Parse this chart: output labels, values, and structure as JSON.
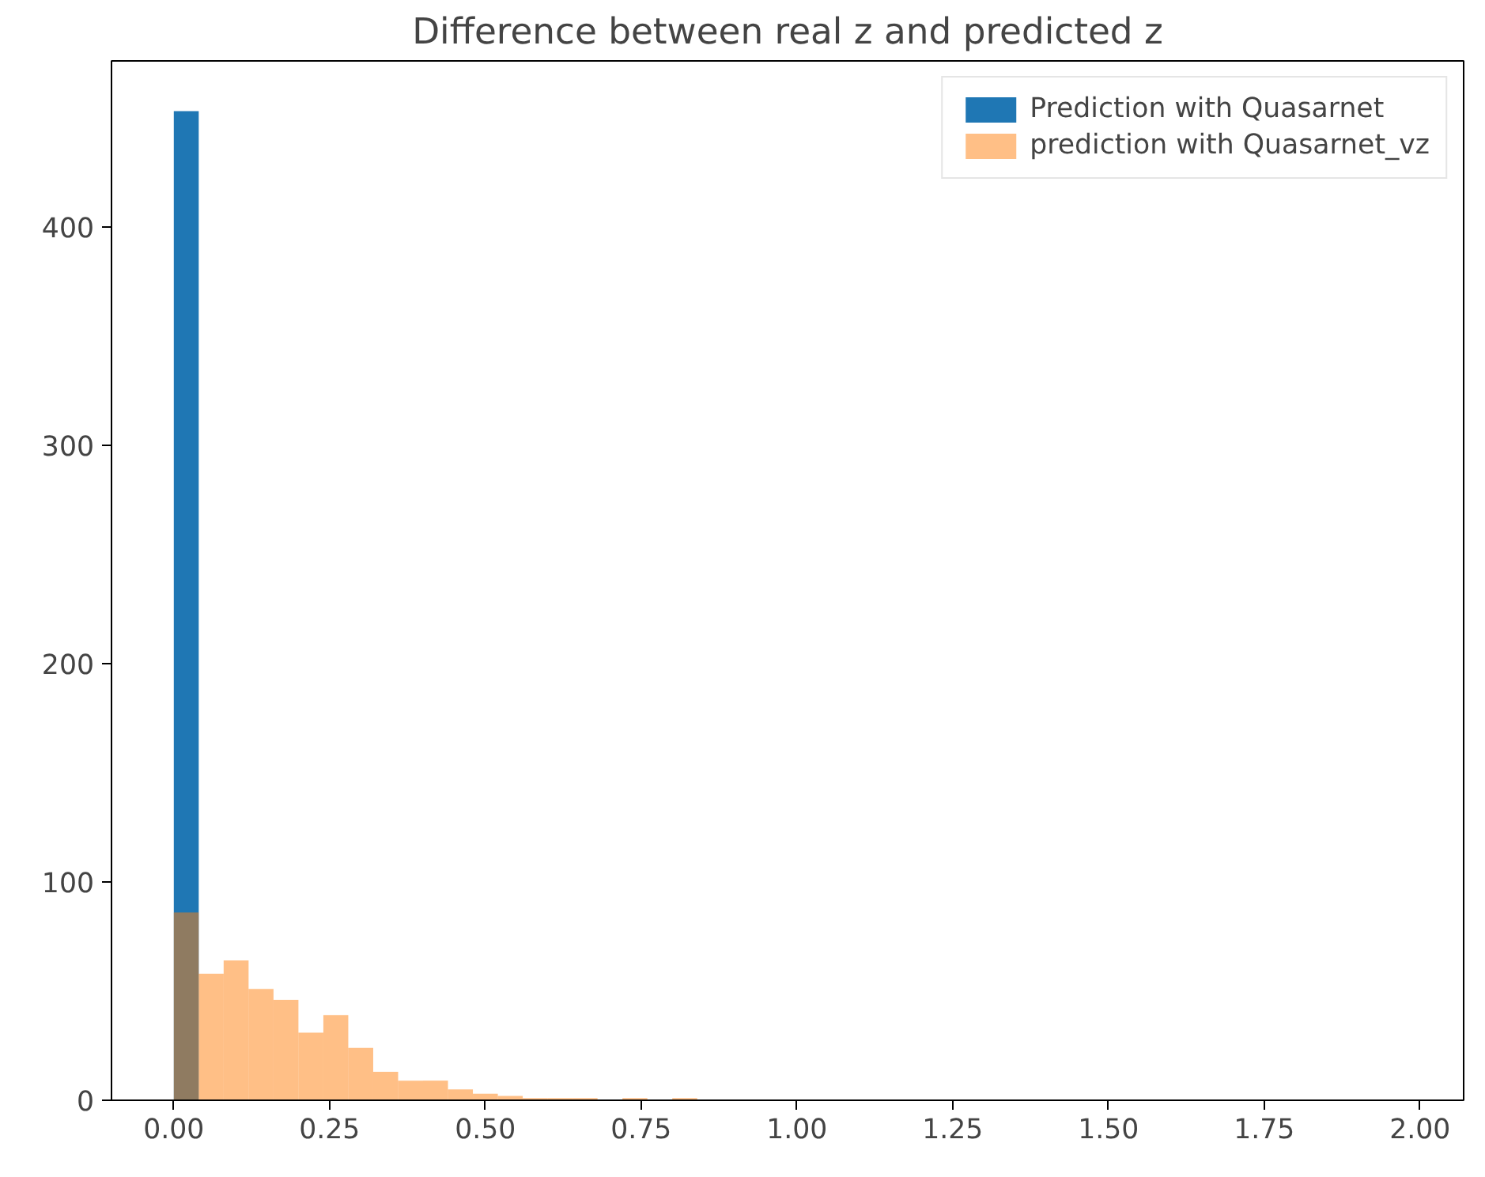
{
  "chart_data": {
    "type": "histogram",
    "title": "Difference between real z and predicted z",
    "bins": [
      0,
      0.04,
      0.08,
      0.12,
      0.16,
      0.2,
      0.24,
      0.28,
      0.32,
      0.36,
      0.4,
      0.44,
      0.48,
      0.52,
      0.56,
      0.6,
      0.64,
      0.68,
      0.72,
      0.76,
      0.8,
      0.84,
      0.88,
      0.92,
      0.96,
      1.0,
      1.04,
      1.08,
      1.12,
      1.16,
      1.2,
      1.24,
      1.28,
      1.32,
      1.36,
      1.4,
      1.44,
      1.48,
      1.52,
      1.56,
      1.6,
      1.64,
      1.68,
      1.72,
      1.76,
      1.8,
      1.84,
      1.88,
      1.92,
      1.96,
      2.0
    ],
    "series": [
      {
        "name": "Prediction with Quasarnet",
        "color": "#1f77b4",
        "values": [
          453,
          0,
          0,
          0,
          0,
          0,
          0,
          0,
          0,
          0,
          0,
          0,
          0,
          0,
          0,
          0,
          0,
          0,
          0,
          0,
          0,
          0,
          0,
          0,
          0,
          0,
          0,
          0,
          0,
          0,
          0,
          0,
          0,
          0,
          0,
          0,
          0,
          0,
          0,
          0,
          0,
          0,
          0,
          0,
          0,
          0,
          0,
          0,
          0,
          0
        ]
      },
      {
        "name": "prediction with Quasarnet_vz",
        "color": "#ff7f0e",
        "values": [
          86,
          58,
          64,
          51,
          46,
          31,
          39,
          24,
          13,
          9,
          9,
          5,
          3,
          2,
          1,
          1,
          1,
          0,
          1,
          0,
          1,
          0,
          0,
          0,
          0,
          0,
          0,
          0,
          0,
          0,
          0,
          0,
          0,
          0,
          0,
          0,
          0,
          0,
          0,
          0,
          0,
          0,
          0,
          0,
          0,
          0,
          0,
          0,
          0,
          0
        ]
      }
    ],
    "xlim": [
      -0.1,
      2.07
    ],
    "ylim": [
      0,
      476
    ],
    "xticks": [
      {
        "value": 0,
        "label": "0.00"
      },
      {
        "value": 0.25,
        "label": "0.25"
      },
      {
        "value": 0.5,
        "label": "0.50"
      },
      {
        "value": 0.75,
        "label": "0.75"
      },
      {
        "value": 1.0,
        "label": "1.00"
      },
      {
        "value": 1.25,
        "label": "1.25"
      },
      {
        "value": 1.5,
        "label": "1.50"
      },
      {
        "value": 1.75,
        "label": "1.75"
      },
      {
        "value": 2.0,
        "label": "2.00"
      }
    ],
    "yticks": [
      0,
      100,
      200,
      300,
      400
    ],
    "grid": false,
    "legend": "top right"
  }
}
